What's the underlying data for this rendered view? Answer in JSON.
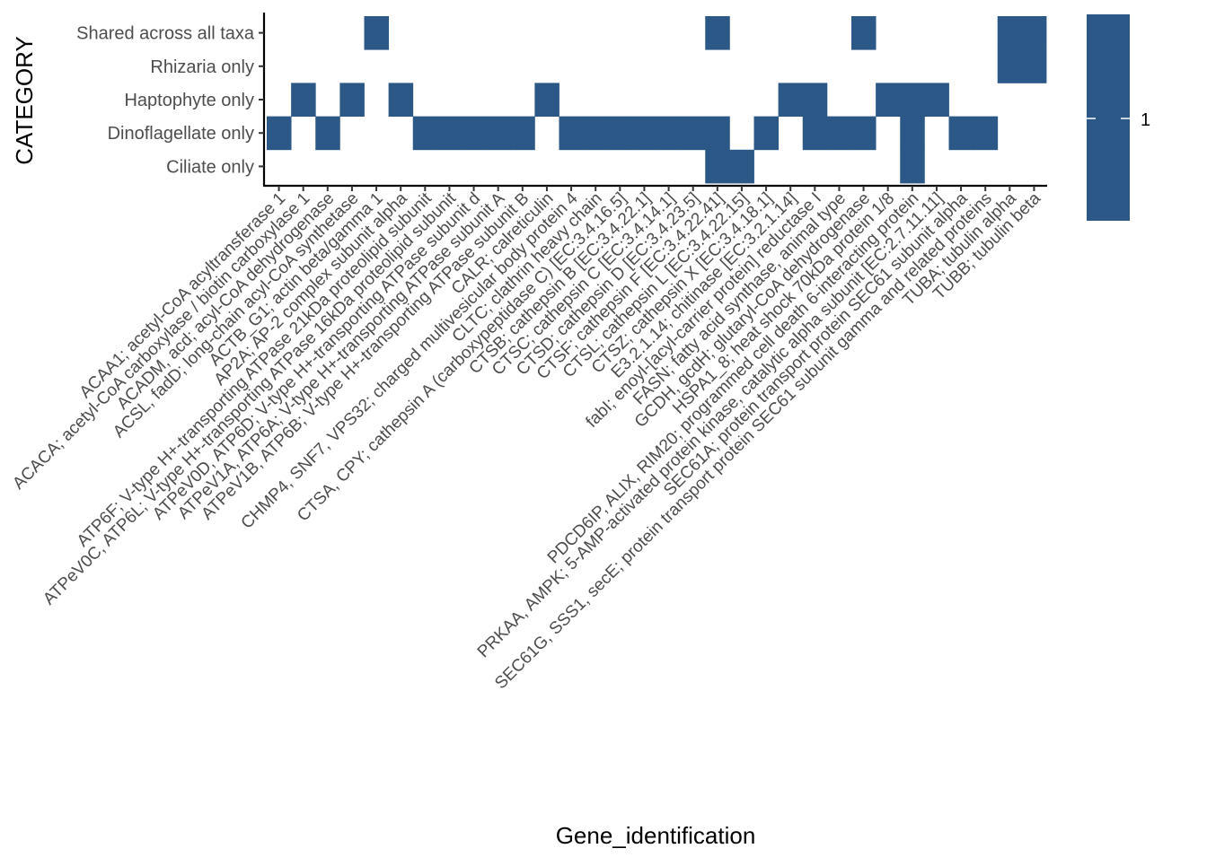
{
  "chart_data": {
    "type": "heatmap",
    "xlabel": "Gene_identification",
    "ylabel": "CATEGORY",
    "fill_color": "#2b5886",
    "legend": {
      "position": "right",
      "labels": [
        "1"
      ]
    },
    "categories_y": [
      "Shared across all taxa",
      "Rhizaria only",
      "Haptophyte only",
      "Dinoflagellate only",
      "Ciliate only"
    ],
    "categories_x": [
      "ACAA1; acetyl-CoA acyltransferase 1",
      "ACACA; acetyl-CoA carboxylase / biotin carboxylase 1",
      "ACADM, acd; acyl-CoA dehydrogenase",
      "ACSL, fadD; long-chain acyl-CoA synthetase",
      "ACTB_G1; actin beta/gamma 1",
      "AP2A; AP-2 complex subunit alpha",
      "ATP6F; V-type H+-transporting ATPase 21kDa proteolipid subunit",
      "ATPeV0C, ATP6L; V-type H+-transporting ATPase 16kDa proteolipid subunit",
      "ATPeV0D, ATP6D; V-type H+-transporting ATPase subunit d",
      "ATPeV1A, ATP6A; V-type H+-transporting ATPase subunit A",
      "ATPeV1B, ATP6B; V-type H+-transporting ATPase subunit B",
      "CALR; calreticulin",
      "CHMP4, SNF7, VPS32; charged multivesicular body protein 4",
      "CLTC; clathrin heavy chain",
      "CTSA, CPY; cathepsin A (carboxypeptidase C) [EC:3.4.16.5]",
      "CTSB; cathepsin B [EC:3.4.22.1]",
      "CTSC; cathepsin C [EC:3.4.14.1]",
      "CTSD; cathepsin D [EC:3.4.23.5]",
      "CTSF; cathepsin F [EC:3.4.22.41]",
      "CTSL; cathepsin L [EC:3.4.22.15]",
      "CTSZ; cathepsin X [EC:3.4.18.1]",
      "E3.2.1.14; chitinase [EC:3.2.1.14]",
      "fabI; enoyl-[acyl-carrier protein] reductase I",
      "FASN; fatty acid synthase, animal type",
      "GCDH, gcdH; glutaryl-CoA dehydrogenase",
      "HSPA1_8; heat shock 70kDa protein 1/8",
      "PDCD6IP, ALIX, RIM20; programmed cell death 6-interacting protein",
      "PRKAA, AMPK; 5-AMP-activated protein kinase, catalytic alpha subunit [EC:2.7.11.11]",
      "SEC61A; protein transport protein SEC61 subunit alpha",
      "SEC61G, SSS1, secE; protein transport protein SEC61 subunit gamma and related proteins",
      "TUBA; tubulin alpha",
      "TUBB; tubulin beta"
    ],
    "cells": [
      {
        "x": "ACAA1; acetyl-CoA acyltransferase 1",
        "y": "Dinoflagellate only",
        "value": 1
      },
      {
        "x": "ACACA; acetyl-CoA carboxylase / biotin carboxylase 1",
        "y": "Haptophyte only",
        "value": 1
      },
      {
        "x": "ACADM, acd; acyl-CoA dehydrogenase",
        "y": "Dinoflagellate only",
        "value": 1
      },
      {
        "x": "ACSL, fadD; long-chain acyl-CoA synthetase",
        "y": "Haptophyte only",
        "value": 1
      },
      {
        "x": "ACTB_G1; actin beta/gamma 1",
        "y": "Shared across all taxa",
        "value": 1
      },
      {
        "x": "AP2A; AP-2 complex subunit alpha",
        "y": "Haptophyte only",
        "value": 1
      },
      {
        "x": "ATP6F; V-type H+-transporting ATPase 21kDa proteolipid subunit",
        "y": "Dinoflagellate only",
        "value": 1
      },
      {
        "x": "ATPeV0C, ATP6L; V-type H+-transporting ATPase 16kDa proteolipid subunit",
        "y": "Dinoflagellate only",
        "value": 1
      },
      {
        "x": "ATPeV0D, ATP6D; V-type H+-transporting ATPase subunit d",
        "y": "Dinoflagellate only",
        "value": 1
      },
      {
        "x": "ATPeV1A, ATP6A; V-type H+-transporting ATPase subunit A",
        "y": "Dinoflagellate only",
        "value": 1
      },
      {
        "x": "ATPeV1B, ATP6B; V-type H+-transporting ATPase subunit B",
        "y": "Dinoflagellate only",
        "value": 1
      },
      {
        "x": "CALR; calreticulin",
        "y": "Haptophyte only",
        "value": 1
      },
      {
        "x": "CHMP4, SNF7, VPS32; charged multivesicular body protein 4",
        "y": "Dinoflagellate only",
        "value": 1
      },
      {
        "x": "CLTC; clathrin heavy chain",
        "y": "Dinoflagellate only",
        "value": 1
      },
      {
        "x": "CTSA, CPY; cathepsin A (carboxypeptidase C) [EC:3.4.16.5]",
        "y": "Dinoflagellate only",
        "value": 1
      },
      {
        "x": "CTSB; cathepsin B [EC:3.4.22.1]",
        "y": "Dinoflagellate only",
        "value": 1
      },
      {
        "x": "CTSC; cathepsin C [EC:3.4.14.1]",
        "y": "Dinoflagellate only",
        "value": 1
      },
      {
        "x": "CTSD; cathepsin D [EC:3.4.23.5]",
        "y": "Dinoflagellate only",
        "value": 1
      },
      {
        "x": "CTSF; cathepsin F [EC:3.4.22.41]",
        "y": "Shared across all taxa",
        "value": 1
      },
      {
        "x": "CTSF; cathepsin F [EC:3.4.22.41]",
        "y": "Dinoflagellate only",
        "value": 1
      },
      {
        "x": "CTSF; cathepsin F [EC:3.4.22.41]",
        "y": "Ciliate only",
        "value": 1
      },
      {
        "x": "CTSL; cathepsin L [EC:3.4.22.15]",
        "y": "Ciliate only",
        "value": 1
      },
      {
        "x": "CTSZ; cathepsin X [EC:3.4.18.1]",
        "y": "Dinoflagellate only",
        "value": 1
      },
      {
        "x": "E3.2.1.14; chitinase [EC:3.2.1.14]",
        "y": "Haptophyte only",
        "value": 1
      },
      {
        "x": "fabI; enoyl-[acyl-carrier protein] reductase I",
        "y": "Haptophyte only",
        "value": 1
      },
      {
        "x": "fabI; enoyl-[acyl-carrier protein] reductase I",
        "y": "Dinoflagellate only",
        "value": 1
      },
      {
        "x": "FASN; fatty acid synthase, animal type",
        "y": "Dinoflagellate only",
        "value": 1
      },
      {
        "x": "GCDH, gcdH; glutaryl-CoA dehydrogenase",
        "y": "Shared across all taxa",
        "value": 1
      },
      {
        "x": "GCDH, gcdH; glutaryl-CoA dehydrogenase",
        "y": "Dinoflagellate only",
        "value": 1
      },
      {
        "x": "HSPA1_8; heat shock 70kDa protein 1/8",
        "y": "Haptophyte only",
        "value": 1
      },
      {
        "x": "PDCD6IP, ALIX, RIM20; programmed cell death 6-interacting protein",
        "y": "Haptophyte only",
        "value": 1
      },
      {
        "x": "PDCD6IP, ALIX, RIM20; programmed cell death 6-interacting protein",
        "y": "Dinoflagellate only",
        "value": 1
      },
      {
        "x": "PDCD6IP, ALIX, RIM20; programmed cell death 6-interacting protein",
        "y": "Ciliate only",
        "value": 1
      },
      {
        "x": "PRKAA, AMPK; 5-AMP-activated protein kinase, catalytic alpha subunit [EC:2.7.11.11]",
        "y": "Haptophyte only",
        "value": 1
      },
      {
        "x": "SEC61A; protein transport protein SEC61 subunit alpha",
        "y": "Dinoflagellate only",
        "value": 1
      },
      {
        "x": "SEC61G, SSS1, secE; protein transport protein SEC61 subunit gamma and related proteins",
        "y": "Dinoflagellate only",
        "value": 1
      },
      {
        "x": "TUBA; tubulin alpha",
        "y": "Shared across all taxa",
        "value": 1
      },
      {
        "x": "TUBA; tubulin alpha",
        "y": "Rhizaria only",
        "value": 1
      },
      {
        "x": "TUBB; tubulin beta",
        "y": "Shared across all taxa",
        "value": 1
      },
      {
        "x": "TUBB; tubulin beta",
        "y": "Rhizaria only",
        "value": 1
      }
    ]
  }
}
